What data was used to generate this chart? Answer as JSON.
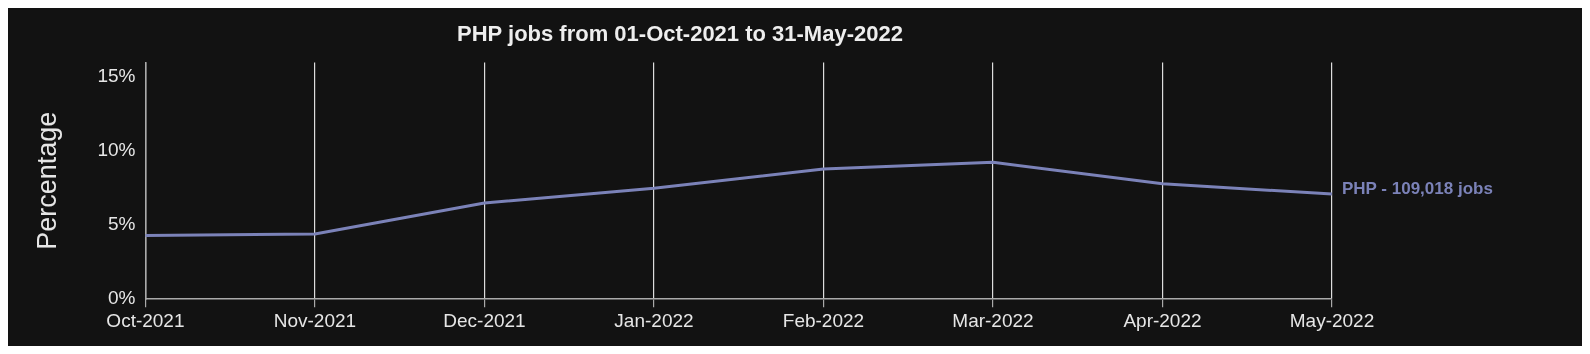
{
  "chart_data": {
    "type": "line",
    "title": "PHP jobs from 01-Oct-2021 to 31-May-2022",
    "ylabel": "Percentage",
    "categories": [
      "Oct-2021",
      "Nov-2021",
      "Dec-2021",
      "Jan-2022",
      "Feb-2022",
      "Mar-2022",
      "Apr-2022",
      "May-2022"
    ],
    "series": [
      {
        "name": "PHP - 109,018 jobs",
        "color": "#7b82b8",
        "values": [
          4.3,
          4.4,
          6.5,
          7.5,
          8.8,
          9.25,
          7.8,
          7.1
        ]
      }
    ],
    "ylim": [
      0,
      16
    ],
    "yticks": [
      {
        "value": 0,
        "label": "0%"
      },
      {
        "value": 5,
        "label": "5%"
      },
      {
        "value": 10,
        "label": "10%"
      },
      {
        "value": 15,
        "label": "15%"
      }
    ],
    "grid": "x",
    "legend": false,
    "marker": "none",
    "line_style": "solid"
  }
}
